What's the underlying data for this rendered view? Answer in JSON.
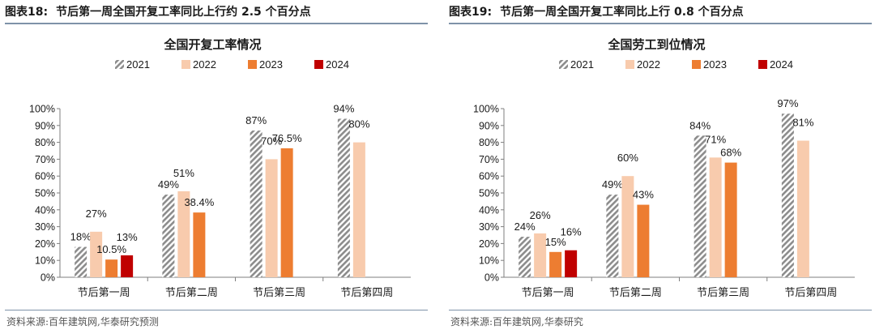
{
  "charts": [
    {
      "figure_number": "图表18:",
      "figure_caption": "节后第一周全国开复工率同比上行约 2.5 个百分点",
      "source": "资料来源:百年建筑网,华泰研究预测",
      "chart_data": {
        "type": "bar",
        "title": "全国开复工率情况",
        "categories": [
          "节后第一周",
          "节后第二周",
          "节后第三周",
          "节后第四周"
        ],
        "series": [
          {
            "name": "2021",
            "values": [
              18,
              49,
              87,
              94
            ],
            "labels": [
              "18%",
              "49%",
              "87%",
              "94%"
            ]
          },
          {
            "name": "2022",
            "values": [
              27,
              51,
              70,
              80
            ],
            "labels": [
              "27%",
              "51%",
              "70%",
              "80%"
            ]
          },
          {
            "name": "2023",
            "values": [
              10.5,
              38.4,
              76.5,
              null
            ],
            "labels": [
              "10.5%",
              "38.4%",
              "76.5%",
              ""
            ]
          },
          {
            "name": "2024",
            "values": [
              13,
              null,
              null,
              null
            ],
            "labels": [
              "13%",
              "",
              "",
              ""
            ]
          }
        ],
        "ylim": [
          0,
          100
        ],
        "yticks": [
          "0%",
          "10%",
          "20%",
          "30%",
          "40%",
          "50%",
          "60%",
          "70%",
          "80%",
          "90%",
          "100%"
        ],
        "xlabel": "",
        "ylabel": "",
        "legend": "top-center"
      }
    },
    {
      "figure_number": "图表19:",
      "figure_caption": "节后第一周全国开复工率同比上行 0.8 个百分点",
      "source": "资料来源:百年建筑网,华泰研究",
      "chart_data": {
        "type": "bar",
        "title": "全国劳工到位情况",
        "categories": [
          "节后第一周",
          "节后第二周",
          "节后第三周",
          "节后第四周"
        ],
        "series": [
          {
            "name": "2021",
            "values": [
              24,
              49,
              84,
              97
            ],
            "labels": [
              "24%",
              "49%",
              "84%",
              "97%"
            ]
          },
          {
            "name": "2022",
            "values": [
              26,
              60,
              71,
              81
            ],
            "labels": [
              "26%",
              "60%",
              "71%",
              "81%"
            ]
          },
          {
            "name": "2023",
            "values": [
              15,
              43,
              68,
              null
            ],
            "labels": [
              "15%",
              "43%",
              "68%",
              ""
            ]
          },
          {
            "name": "2024",
            "values": [
              16,
              null,
              null,
              null
            ],
            "labels": [
              "16%",
              "",
              "",
              ""
            ]
          }
        ],
        "ylim": [
          0,
          100
        ],
        "yticks": [
          "0%",
          "10%",
          "20%",
          "30%",
          "40%",
          "50%",
          "60%",
          "70%",
          "80%",
          "90%",
          "100%"
        ],
        "xlabel": "",
        "ylabel": "",
        "legend": "top-center"
      }
    }
  ],
  "colors": {
    "s2021": "#8c8c8c",
    "s2022": "#f8cbad",
    "s2023": "#ed7d31",
    "s2024": "#c00000",
    "rule": "#7f93a8"
  }
}
